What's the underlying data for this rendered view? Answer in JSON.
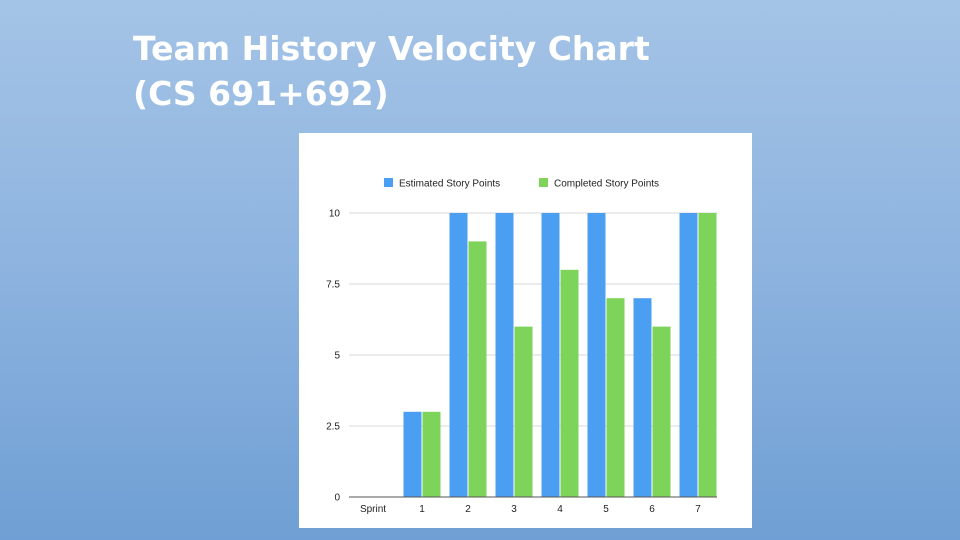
{
  "slide": {
    "title_line1": "Team History Velocity Chart",
    "title_line2": "(CS 691+692)"
  },
  "chart_data": {
    "type": "bar",
    "xlabel": "Sprint",
    "ylabel": "",
    "categories": [
      "1",
      "2",
      "3",
      "4",
      "5",
      "6",
      "7"
    ],
    "series": [
      {
        "name": "Estimated Story Points",
        "color": "#4a9ff2",
        "values": [
          3,
          10,
          10,
          10,
          10,
          7,
          10
        ]
      },
      {
        "name": "Completed Story Points",
        "color": "#7ed35b",
        "values": [
          3,
          9,
          6,
          8,
          7,
          6,
          10
        ]
      }
    ],
    "yticks": [
      "0",
      "2.5",
      "5",
      "7.5",
      "10"
    ],
    "ylim": [
      0,
      10
    ],
    "grid": true,
    "legend_position": "top"
  }
}
